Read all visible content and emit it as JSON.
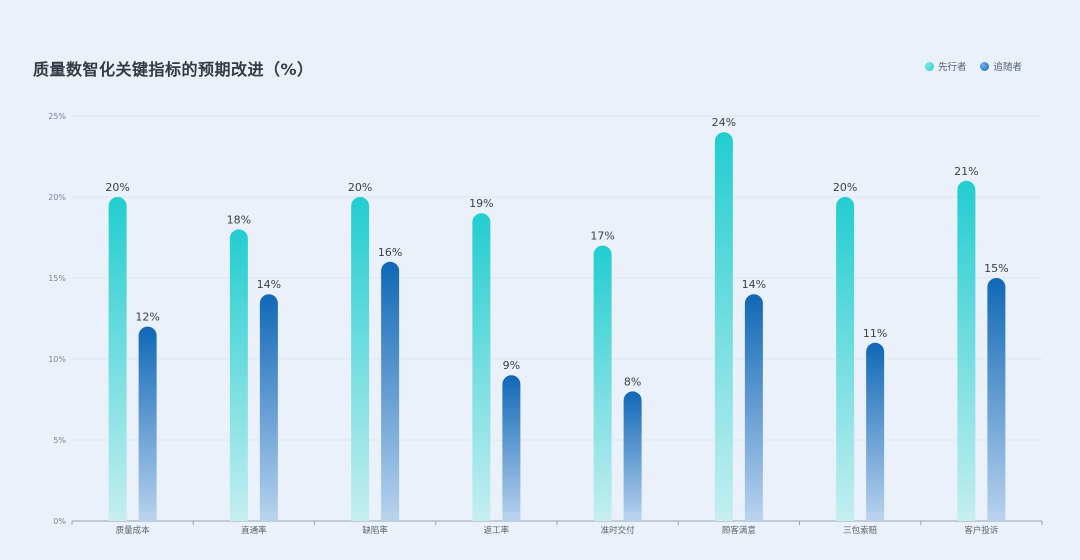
{
  "chart_data": {
    "type": "bar",
    "title": "质量数智化关键指标的预期改进（%）",
    "categories": [
      "质量成本",
      "直通率",
      "缺陷率",
      "返工率",
      "准时交付",
      "顾客满意",
      "三包索赔",
      "客户投诉"
    ],
    "series": [
      {
        "name": "先行者",
        "values": [
          20,
          18,
          20,
          19,
          17,
          24,
          20,
          21
        ]
      },
      {
        "name": "追随者",
        "values": [
          12,
          14,
          16,
          9,
          8,
          14,
          11,
          15
        ]
      }
    ],
    "ylim": [
      0,
      25
    ],
    "yticks": [
      "0%",
      "5%",
      "10%",
      "15%",
      "20%",
      "25%"
    ],
    "value_suffix": "%",
    "grid": true,
    "legend": "top-right",
    "colors": {
      "leader_top": "#22cdd0",
      "leader_bottom": "#c4eef0",
      "follower_top": "#1068b6",
      "follower_bottom": "#b8d2ee",
      "legend_leader": "#3fd6d3",
      "legend_follower": "#2e7fd0"
    }
  }
}
